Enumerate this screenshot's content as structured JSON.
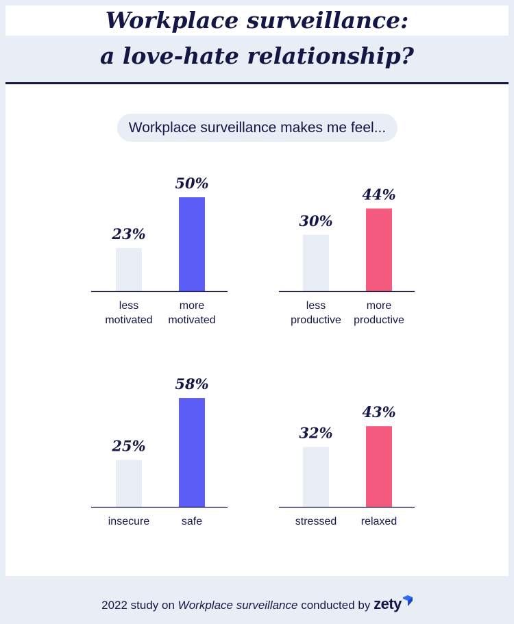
{
  "title": {
    "line1": "Workplace surveillance:",
    "line2": "a love-hate relationship?"
  },
  "subtitle": "Workplace surveillance makes me feel...",
  "footer": {
    "prefix": "2022 study on",
    "study_name": "Workplace surveillance",
    "middle": "conducted by",
    "brand": "zety"
  },
  "colors": {
    "navy": "#141646",
    "light_bar": "#e8edf6",
    "blue_bar": "#5c5cf6",
    "pink_bar": "#f45b7f",
    "background": "#e8edf6"
  },
  "chart_data": [
    {
      "type": "bar",
      "categories": [
        "less motivated",
        "more motivated"
      ],
      "category_lines": [
        [
          "less",
          "motivated"
        ],
        [
          "more",
          "motivated"
        ]
      ],
      "values": [
        23,
        50
      ],
      "value_labels": [
        "23%",
        "50%"
      ],
      "colors": [
        "#e8edf6",
        "#5c5cf6"
      ],
      "ylim": [
        0,
        100
      ]
    },
    {
      "type": "bar",
      "categories": [
        "less productive",
        "more productive"
      ],
      "category_lines": [
        [
          "less",
          "productive"
        ],
        [
          "more",
          "productive"
        ]
      ],
      "values": [
        30,
        44
      ],
      "value_labels": [
        "30%",
        "44%"
      ],
      "colors": [
        "#e8edf6",
        "#f45b7f"
      ],
      "ylim": [
        0,
        100
      ]
    },
    {
      "type": "bar",
      "categories": [
        "insecure",
        "safe"
      ],
      "category_lines": [
        [
          "insecure"
        ],
        [
          "safe"
        ]
      ],
      "values": [
        25,
        58
      ],
      "value_labels": [
        "25%",
        "58%"
      ],
      "colors": [
        "#e8edf6",
        "#5c5cf6"
      ],
      "ylim": [
        0,
        100
      ]
    },
    {
      "type": "bar",
      "categories": [
        "stressed",
        "relaxed"
      ],
      "category_lines": [
        [
          "stressed"
        ],
        [
          "relaxed"
        ]
      ],
      "values": [
        32,
        43
      ],
      "value_labels": [
        "32%",
        "43%"
      ],
      "colors": [
        "#e8edf6",
        "#f45b7f"
      ],
      "ylim": [
        0,
        100
      ]
    }
  ]
}
